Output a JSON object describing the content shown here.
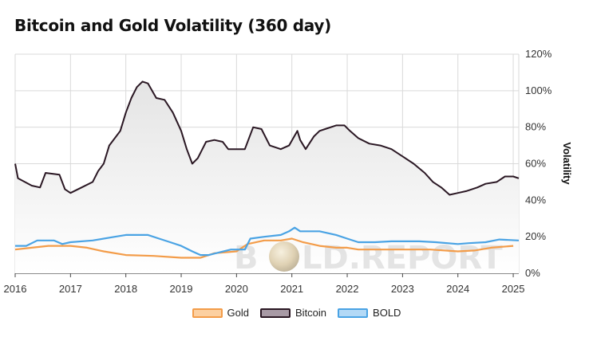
{
  "chart_data": {
    "type": "line",
    "title": "Bitcoin and Gold Volatility (360 day)",
    "ylabel": "Volatility",
    "xlabel": "",
    "xlim": [
      2016.0,
      2025.1
    ],
    "ylim": [
      0,
      120
    ],
    "x_ticks": [
      "2016",
      "2017",
      "2018",
      "2019",
      "2020",
      "2021",
      "2022",
      "2023",
      "2024",
      "2025"
    ],
    "y_ticks": [
      "0%",
      "20%",
      "40%",
      "60%",
      "80%",
      "100%",
      "120%"
    ],
    "grid": true,
    "legend_position": "bottom",
    "series": [
      {
        "name": "Gold",
        "color": "#f39c49",
        "fill": "#fcd0a1",
        "values": [
          [
            2016.0,
            13
          ],
          [
            2016.3,
            14
          ],
          [
            2016.6,
            15
          ],
          [
            2017.0,
            15
          ],
          [
            2017.3,
            14
          ],
          [
            2017.6,
            12
          ],
          [
            2018.0,
            10
          ],
          [
            2018.5,
            9.5
          ],
          [
            2019.0,
            8.5
          ],
          [
            2019.35,
            8.5
          ],
          [
            2019.6,
            11
          ],
          [
            2020.0,
            12
          ],
          [
            2020.2,
            16
          ],
          [
            2020.5,
            18
          ],
          [
            2020.8,
            18
          ],
          [
            2021.0,
            19
          ],
          [
            2021.2,
            17
          ],
          [
            2021.5,
            15
          ],
          [
            2021.8,
            14
          ],
          [
            2022.0,
            14
          ],
          [
            2022.2,
            13
          ],
          [
            2022.5,
            13
          ],
          [
            2023.0,
            13
          ],
          [
            2023.5,
            13
          ],
          [
            2024.0,
            12
          ],
          [
            2024.3,
            12.5
          ],
          [
            2024.6,
            14
          ],
          [
            2025.0,
            15
          ]
        ]
      },
      {
        "name": "Bitcoin",
        "color": "#2a1723",
        "fill": "#a89aa5",
        "values": [
          [
            2016.0,
            60
          ],
          [
            2016.05,
            52
          ],
          [
            2016.3,
            48
          ],
          [
            2016.45,
            47
          ],
          [
            2016.55,
            55
          ],
          [
            2016.8,
            54
          ],
          [
            2016.9,
            46
          ],
          [
            2017.0,
            44
          ],
          [
            2017.2,
            47
          ],
          [
            2017.4,
            50
          ],
          [
            2017.5,
            56
          ],
          [
            2017.6,
            60
          ],
          [
            2017.7,
            70
          ],
          [
            2017.9,
            78
          ],
          [
            2018.0,
            88
          ],
          [
            2018.1,
            96
          ],
          [
            2018.2,
            102
          ],
          [
            2018.3,
            105
          ],
          [
            2018.4,
            104
          ],
          [
            2018.55,
            96
          ],
          [
            2018.7,
            95
          ],
          [
            2018.85,
            88
          ],
          [
            2019.0,
            78
          ],
          [
            2019.1,
            68
          ],
          [
            2019.2,
            60
          ],
          [
            2019.3,
            63
          ],
          [
            2019.45,
            72
          ],
          [
            2019.6,
            73
          ],
          [
            2019.75,
            72
          ],
          [
            2019.85,
            68
          ],
          [
            2020.0,
            68
          ],
          [
            2020.15,
            68
          ],
          [
            2020.3,
            80
          ],
          [
            2020.45,
            79
          ],
          [
            2020.6,
            70
          ],
          [
            2020.8,
            68
          ],
          [
            2020.95,
            70
          ],
          [
            2021.1,
            78
          ],
          [
            2021.15,
            73
          ],
          [
            2021.25,
            68
          ],
          [
            2021.4,
            75
          ],
          [
            2021.5,
            78
          ],
          [
            2021.6,
            79
          ],
          [
            2021.8,
            81
          ],
          [
            2021.95,
            81
          ],
          [
            2022.05,
            78
          ],
          [
            2022.2,
            74
          ],
          [
            2022.4,
            71
          ],
          [
            2022.6,
            70
          ],
          [
            2022.8,
            68
          ],
          [
            2023.0,
            64
          ],
          [
            2023.2,
            60
          ],
          [
            2023.4,
            55
          ],
          [
            2023.55,
            50
          ],
          [
            2023.7,
            47
          ],
          [
            2023.85,
            43
          ],
          [
            2024.0,
            44
          ],
          [
            2024.15,
            45
          ],
          [
            2024.35,
            47
          ],
          [
            2024.5,
            49
          ],
          [
            2024.7,
            50
          ],
          [
            2024.85,
            53
          ],
          [
            2025.0,
            53
          ],
          [
            2025.1,
            52
          ]
        ]
      },
      {
        "name": "BOLD",
        "color": "#4aa3e4",
        "fill": "#b3d9f6",
        "values": [
          [
            2016.0,
            15
          ],
          [
            2016.2,
            15
          ],
          [
            2016.4,
            18
          ],
          [
            2016.7,
            18
          ],
          [
            2016.85,
            16
          ],
          [
            2017.0,
            17
          ],
          [
            2017.4,
            18
          ],
          [
            2017.8,
            20
          ],
          [
            2018.0,
            21
          ],
          [
            2018.4,
            21
          ],
          [
            2018.6,
            19
          ],
          [
            2018.8,
            17
          ],
          [
            2019.0,
            15
          ],
          [
            2019.2,
            12
          ],
          [
            2019.35,
            10
          ],
          [
            2019.5,
            10
          ],
          [
            2019.7,
            11.5
          ],
          [
            2019.9,
            13
          ],
          [
            2020.15,
            13
          ],
          [
            2020.25,
            19
          ],
          [
            2020.5,
            20
          ],
          [
            2020.8,
            21
          ],
          [
            2020.95,
            23
          ],
          [
            2021.05,
            25
          ],
          [
            2021.15,
            23
          ],
          [
            2021.5,
            23
          ],
          [
            2021.8,
            21
          ],
          [
            2022.0,
            19
          ],
          [
            2022.2,
            17
          ],
          [
            2022.5,
            17
          ],
          [
            2022.8,
            17.5
          ],
          [
            2023.0,
            17.5
          ],
          [
            2023.3,
            17.5
          ],
          [
            2023.6,
            17
          ],
          [
            2024.0,
            16
          ],
          [
            2024.2,
            16.5
          ],
          [
            2024.5,
            17
          ],
          [
            2024.75,
            18.5
          ],
          [
            2025.1,
            18
          ]
        ]
      }
    ]
  },
  "watermark": {
    "left": "B",
    "right": "LD.REPORT"
  }
}
